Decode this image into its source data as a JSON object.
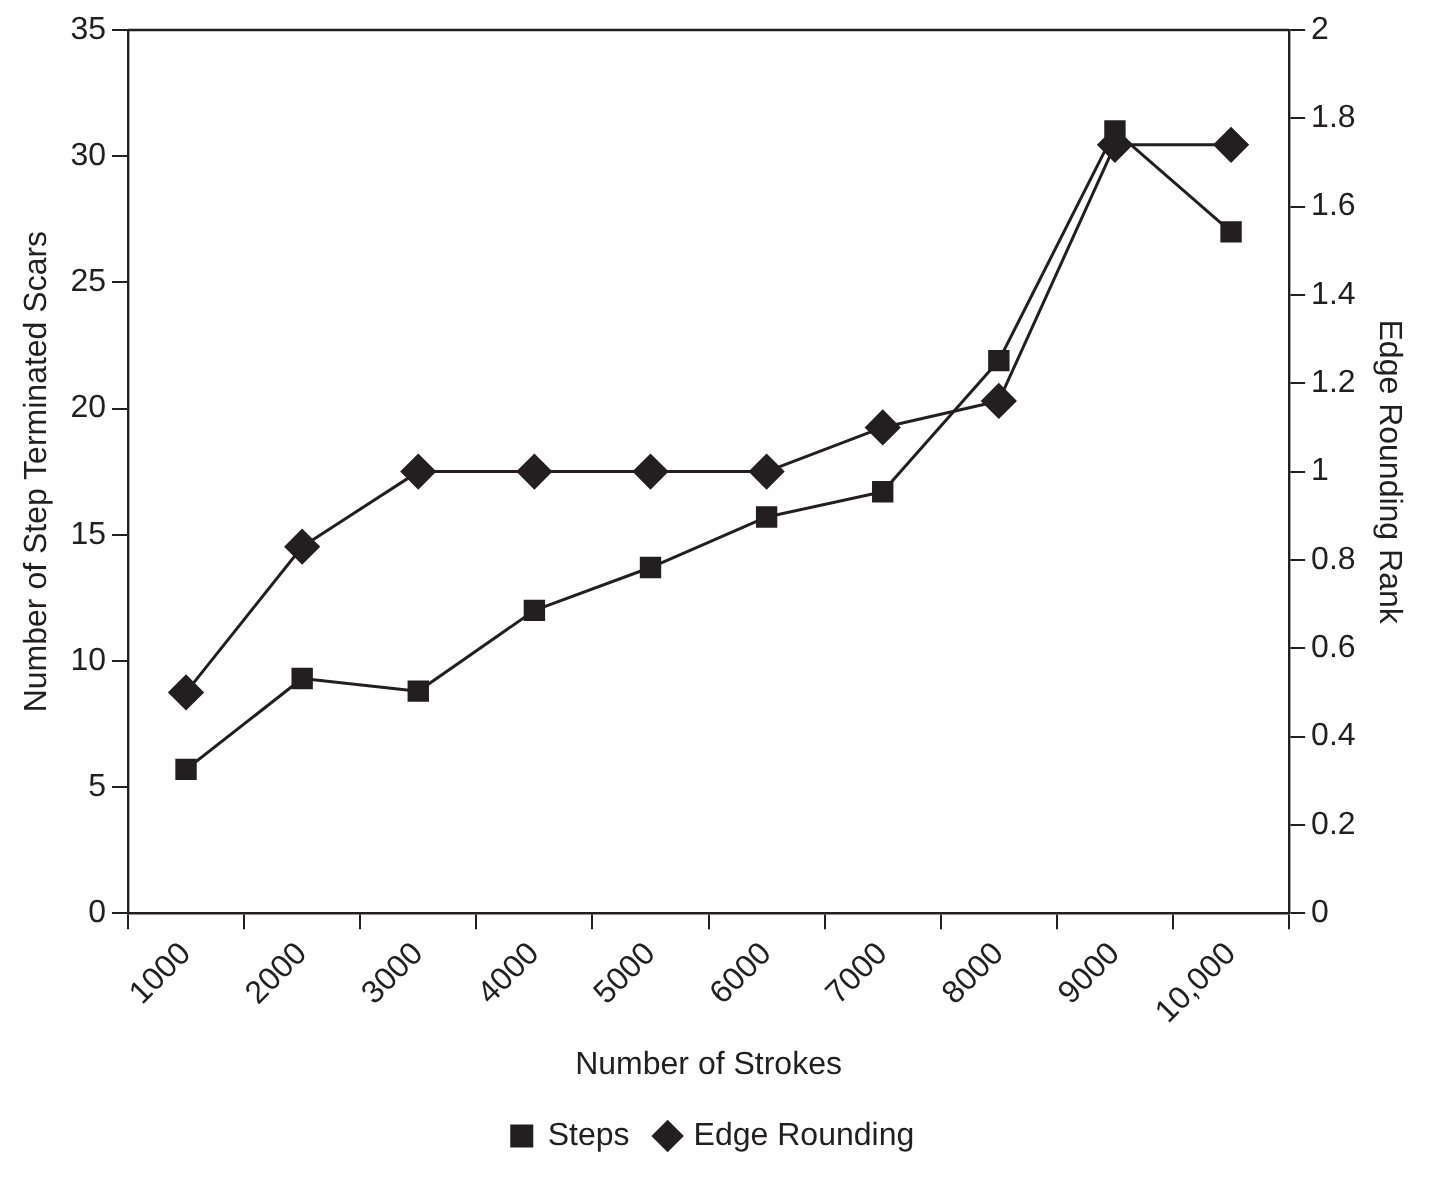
{
  "chart_data": {
    "type": "line",
    "xlabel": "Number of Strokes",
    "ylabel": "Number of Step Terminated Scars",
    "y2label": "Edge Rounding Rank",
    "categories": [
      "1000",
      "2000",
      "3000",
      "4000",
      "5000",
      "6000",
      "7000",
      "8000",
      "9000",
      "10,000"
    ],
    "series": [
      {
        "name": "Steps",
        "color": "#231f20",
        "marker": "square",
        "values": [
          5.7,
          9.3,
          8.8,
          12,
          13.7,
          15.7,
          16.7,
          21.9,
          31,
          27
        ]
      },
      {
        "name": "Edge Rounding",
        "color": "#231f20",
        "marker": "diamond",
        "axis": "y2",
        "values": [
          0.5,
          0.83,
          1.0,
          1.0,
          1.0,
          1.0,
          1.1,
          1.16,
          1.74,
          1.74
        ]
      }
    ],
    "ylim": [
      0,
      35
    ],
    "yticks": [
      0,
      5,
      10,
      15,
      20,
      25,
      30,
      35
    ],
    "y2lim": [
      0,
      2
    ],
    "y2ticks": [
      0,
      0.2,
      0.4,
      0.6,
      0.8,
      1,
      1.2,
      1.4,
      1.6,
      1.8,
      2
    ],
    "grid": false,
    "legend": "bottom"
  }
}
